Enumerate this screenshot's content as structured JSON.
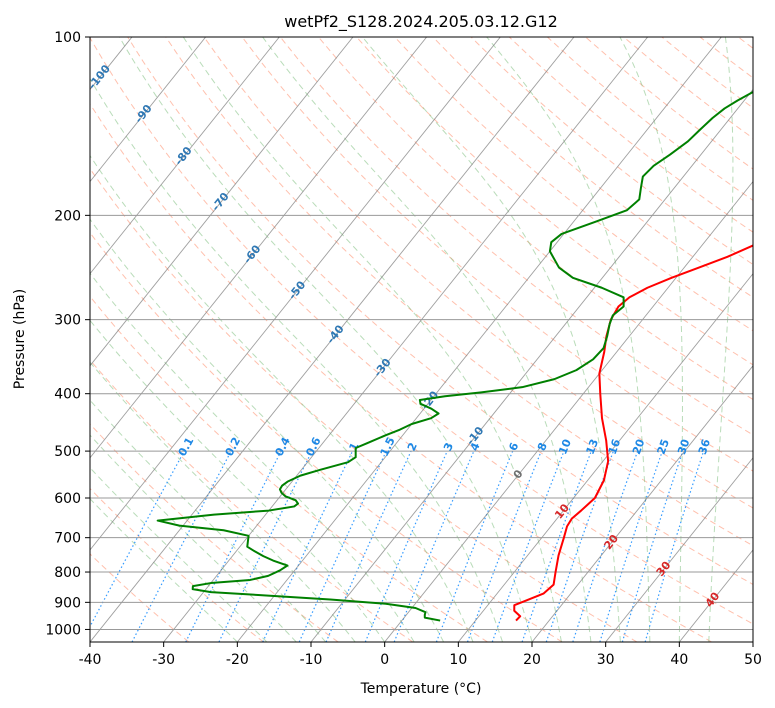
{
  "chart_data": {
    "type": "line",
    "title": "wetPf2_S128.2024.205.03.12.G12",
    "xlabel": "Temperature (°C)",
    "ylabel": "Pressure (hPa)",
    "xlim": [
      -40,
      50
    ],
    "ylim": [
      1050,
      100
    ],
    "y_scale": "log",
    "grid": true,
    "x_ticks": [
      -40,
      -30,
      -20,
      -10,
      0,
      10,
      20,
      30,
      40,
      50
    ],
    "y_ticks": [
      100,
      200,
      300,
      400,
      500,
      600,
      700,
      800,
      900,
      1000
    ],
    "x_tick_labels": [
      "-40",
      "-30",
      "-20",
      "-10",
      "0",
      "10",
      "20",
      "30",
      "40",
      "50"
    ],
    "y_tick_labels": [
      "100",
      "200",
      "300",
      "400",
      "500",
      "600",
      "700",
      "800",
      "900",
      "1000"
    ],
    "series": [
      {
        "color": "#ff0000",
        "role": "temperature",
        "points": [
          [
            966,
            15.5
          ],
          [
            950,
            15.6
          ],
          [
            930,
            14.2
          ],
          [
            910,
            13.6
          ],
          [
            895,
            14.6
          ],
          [
            870,
            16.3
          ],
          [
            840,
            16.7
          ],
          [
            800,
            15.6
          ],
          [
            750,
            14.2
          ],
          [
            700,
            13.0
          ],
          [
            670,
            12.2
          ],
          [
            650,
            12.0
          ],
          [
            630,
            12.4
          ],
          [
            600,
            12.9
          ],
          [
            560,
            12.2
          ],
          [
            520,
            10.7
          ],
          [
            480,
            8.2
          ],
          [
            440,
            5.2
          ],
          [
            400,
            2.3
          ],
          [
            370,
            0.0
          ],
          [
            340,
            -1.7
          ],
          [
            320,
            -3.1
          ],
          [
            300,
            -4.3
          ],
          [
            285,
            -4.7
          ],
          [
            275,
            -4.2
          ],
          [
            265,
            -2.8
          ],
          [
            255,
            -0.6
          ],
          [
            245,
            2.0
          ],
          [
            235,
            4.7
          ],
          [
            225,
            6.9
          ],
          [
            215,
            8.6
          ],
          [
            200,
            10.4
          ],
          [
            190,
            11.5
          ],
          [
            180,
            12.5
          ],
          [
            170,
            13.5
          ],
          [
            160,
            14.0
          ],
          [
            150,
            14.3
          ],
          [
            140,
            14.9
          ],
          [
            130,
            16.4
          ],
          [
            120,
            18.1
          ],
          [
            110,
            19.8
          ],
          [
            104,
            20.5
          ],
          [
            100,
            21.0
          ]
        ]
      },
      {
        "color": "#008000",
        "role": "dewpoint",
        "points": [
          [
            966,
            5.2
          ],
          [
            955,
            2.8
          ],
          [
            945,
            2.5
          ],
          [
            935,
            2.3
          ],
          [
            920,
            0.5
          ],
          [
            905,
            -4.0
          ],
          [
            890,
            -12.0
          ],
          [
            875,
            -22.0
          ],
          [
            865,
            -29.0
          ],
          [
            855,
            -31.8
          ],
          [
            845,
            -32.1
          ],
          [
            835,
            -30.0
          ],
          [
            825,
            -25.0
          ],
          [
            812,
            -23.0
          ],
          [
            795,
            -22.0
          ],
          [
            780,
            -21.5
          ],
          [
            765,
            -24.0
          ],
          [
            752,
            -25.8
          ],
          [
            738,
            -27.5
          ],
          [
            725,
            -29.0
          ],
          [
            710,
            -29.5
          ],
          [
            695,
            -30.0
          ],
          [
            680,
            -34.0
          ],
          [
            668,
            -40.5
          ],
          [
            655,
            -44.0
          ],
          [
            640,
            -37.0
          ],
          [
            630,
            -30.0
          ],
          [
            620,
            -27.0
          ],
          [
            613,
            -26.8
          ],
          [
            605,
            -27.5
          ],
          [
            596,
            -29.3
          ],
          [
            588,
            -30.2
          ],
          [
            580,
            -30.8
          ],
          [
            572,
            -30.9
          ],
          [
            563,
            -30.6
          ],
          [
            550,
            -29.5
          ],
          [
            538,
            -27.5
          ],
          [
            530,
            -26.0
          ],
          [
            522,
            -24.5
          ],
          [
            512,
            -24.0
          ],
          [
            503,
            -24.5
          ],
          [
            494,
            -25.0
          ],
          [
            485,
            -24.0
          ],
          [
            470,
            -22.3
          ],
          [
            460,
            -21.0
          ],
          [
            450,
            -20.0
          ],
          [
            440,
            -18.0
          ],
          [
            432,
            -17.5
          ],
          [
            424,
            -19.0
          ],
          [
            416,
            -21.0
          ],
          [
            410,
            -21.5
          ],
          [
            404,
            -18.5
          ],
          [
            398,
            -14.0
          ],
          [
            390,
            -9.0
          ],
          [
            378,
            -5.5
          ],
          [
            365,
            -3.5
          ],
          [
            350,
            -2.4
          ],
          [
            335,
            -2.2
          ],
          [
            320,
            -3.0
          ],
          [
            305,
            -4.0
          ],
          [
            295,
            -4.5
          ],
          [
            285,
            -4.0
          ],
          [
            275,
            -5.0
          ],
          [
            265,
            -9.0
          ],
          [
            255,
            -14.0
          ],
          [
            245,
            -17.0
          ],
          [
            230,
            -20.0
          ],
          [
            222,
            -20.8
          ],
          [
            215,
            -20.3
          ],
          [
            205,
            -17.0
          ],
          [
            196,
            -14.0
          ],
          [
            188,
            -13.5
          ],
          [
            180,
            -14.5
          ],
          [
            172,
            -15.5
          ],
          [
            165,
            -15.2
          ],
          [
            158,
            -14.2
          ],
          [
            150,
            -13.2
          ],
          [
            143,
            -12.8
          ],
          [
            137,
            -12.4
          ],
          [
            132,
            -11.8
          ],
          [
            128,
            -10.9
          ],
          [
            122,
            -9.2
          ],
          [
            117,
            -7.8
          ],
          [
            110,
            -5.8
          ],
          [
            105,
            -3.9
          ],
          [
            100,
            0.0
          ]
        ]
      }
    ],
    "reference_lines": {
      "dry_adiabats": {
        "color": "#ff8c69",
        "style": "dashed"
      },
      "moist_adiabats": {
        "color": "#7fbf7f",
        "style": "dashed"
      },
      "isotherms": {
        "color": "#808080",
        "style": "solid"
      },
      "mixing_ratio": {
        "color": "#1e90ff",
        "style": "dotted"
      }
    },
    "mixing_ratio_labels": [
      "0.1",
      "0.2",
      "0.4",
      "0.6",
      "1",
      "1.5",
      "2",
      "3",
      "4",
      "6",
      "8",
      "10",
      "13",
      "16",
      "20",
      "25",
      "30",
      "36"
    ],
    "isotherm_labels_blue": [
      "-100",
      "-90",
      "-80",
      "-70",
      "-60",
      "-50",
      "-40",
      "-30",
      "-20",
      "-10"
    ],
    "isotherm_labels_red": [
      "10",
      "20",
      "30",
      "40"
    ],
    "isotherm_label_zero": "0"
  }
}
